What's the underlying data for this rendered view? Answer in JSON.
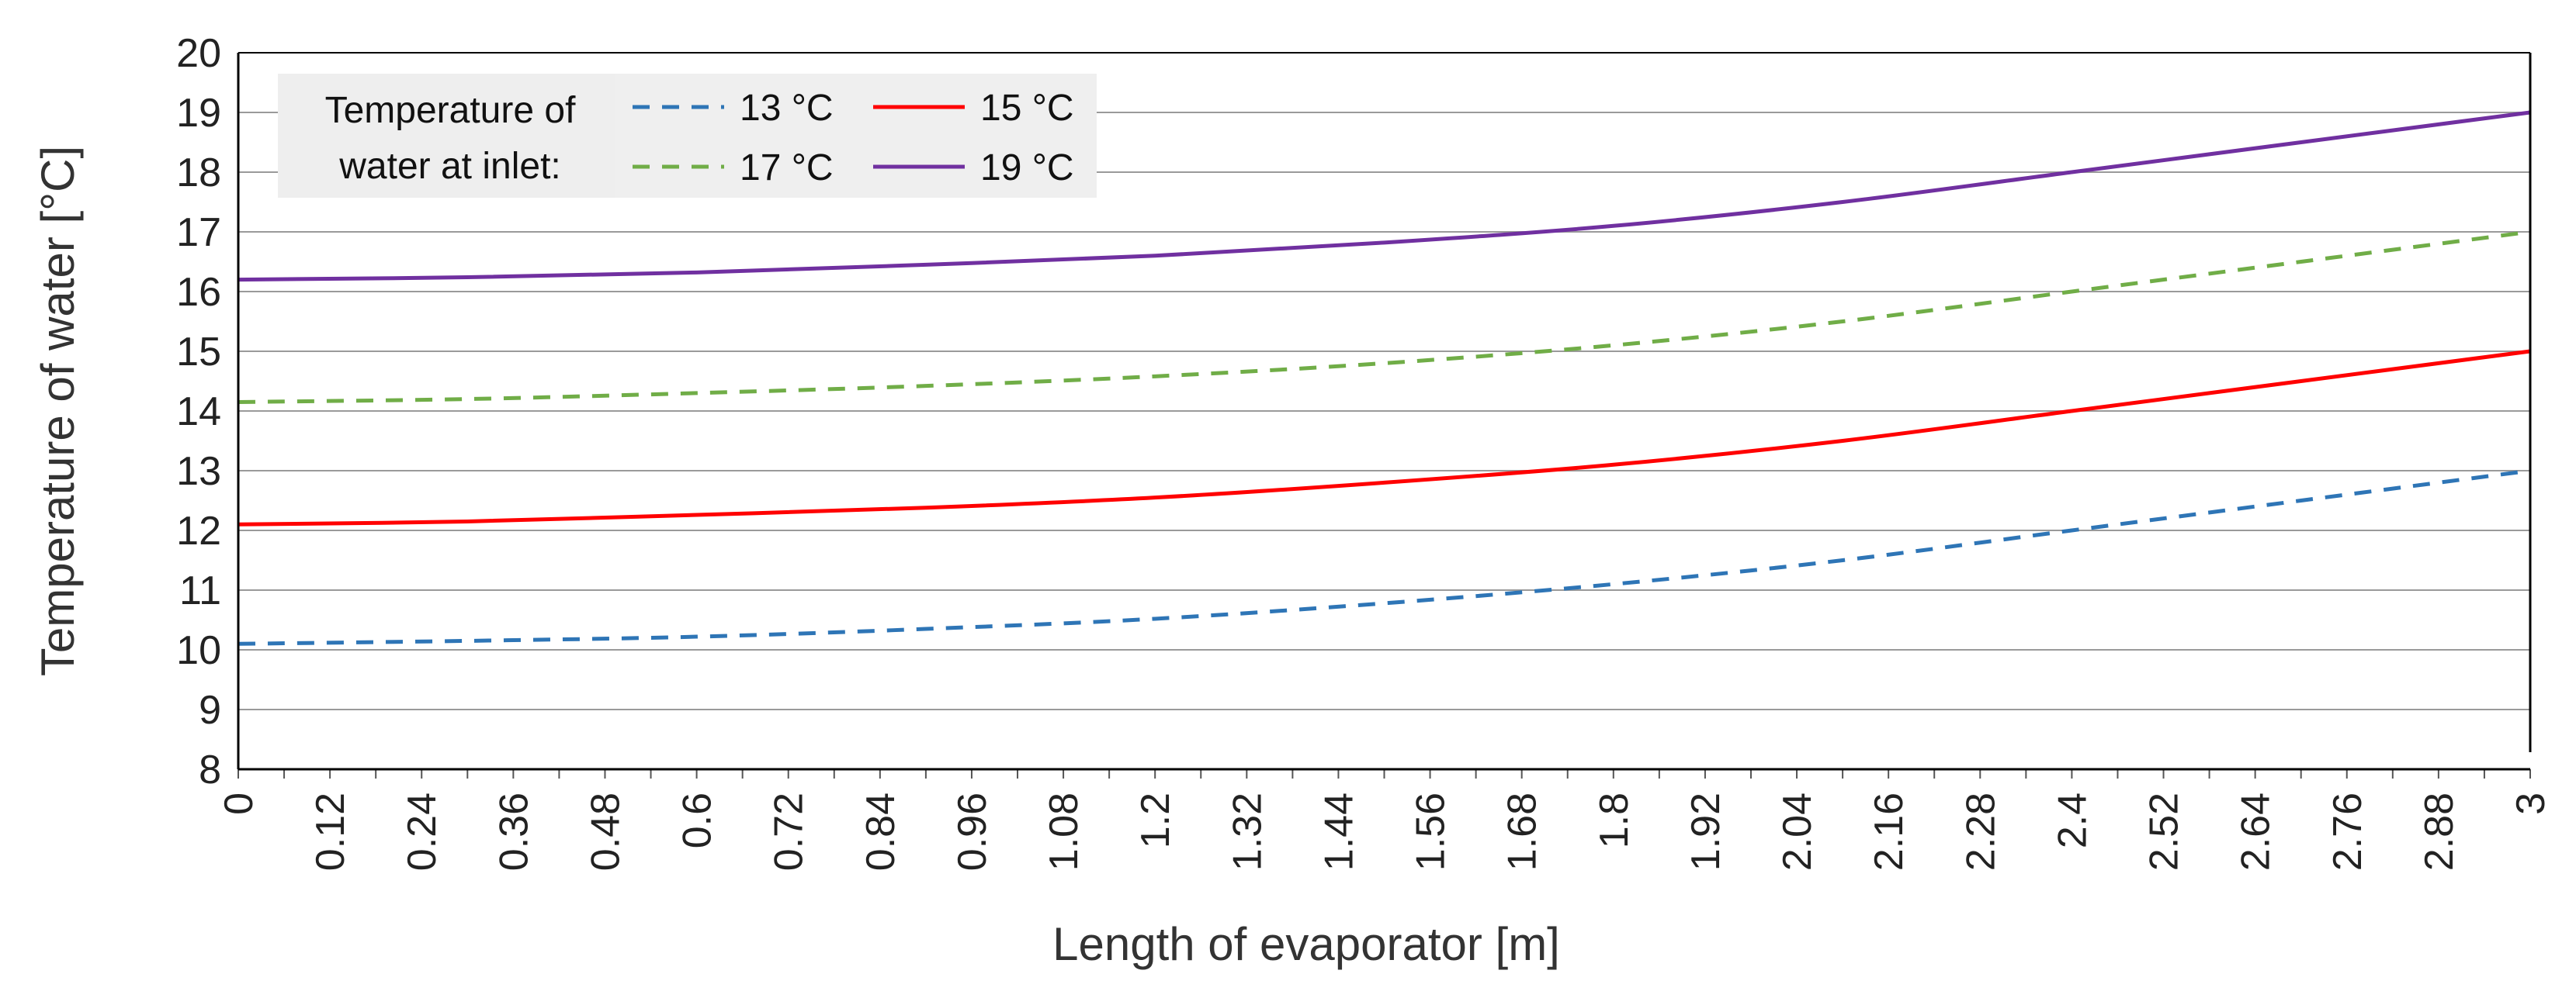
{
  "chart_data": {
    "type": "line",
    "title": "",
    "xlabel": "Length of evaporator [m]",
    "ylabel": "Temperature of water [°C]",
    "xlim": [
      0,
      3
    ],
    "ylim": [
      8,
      20
    ],
    "y_ticks": [
      "8",
      "9",
      "10",
      "11",
      "12",
      "13",
      "14",
      "15",
      "16",
      "17",
      "18",
      "19",
      "20"
    ],
    "x_tick_labels": [
      "0",
      "0.12",
      "0.24",
      "0.36",
      "0.48",
      "0.6",
      "0.72",
      "0.84",
      "0.96",
      "1.08",
      "1.2",
      "1.32",
      "1.44",
      "1.56",
      "1.68",
      "1.8",
      "1.92",
      "2.04",
      "2.16",
      "2.28",
      "2.4",
      "2.52",
      "2.64",
      "2.76",
      "2.88",
      "3"
    ],
    "grid": "horizontal",
    "legend": {
      "title_lines": [
        "Temperature of",
        "water at inlet:"
      ],
      "placement": "top-left"
    },
    "x": [
      0,
      0.3,
      0.6,
      0.9,
      1.2,
      1.5,
      1.8,
      2.1,
      2.4,
      2.7,
      3.0
    ],
    "series": [
      {
        "name": "13 °C",
        "color": "#2E75B6",
        "style": "dashed",
        "values": [
          10.1,
          10.15,
          10.22,
          10.35,
          10.52,
          10.78,
          11.1,
          11.5,
          12.0,
          12.5,
          13.0
        ]
      },
      {
        "name": "15 °C",
        "color": "#FF0000",
        "style": "solid",
        "values": [
          12.1,
          12.15,
          12.26,
          12.38,
          12.55,
          12.8,
          13.1,
          13.5,
          14.0,
          14.5,
          15.0
        ]
      },
      {
        "name": "17 °C",
        "color": "#70AD47",
        "style": "dashed",
        "values": [
          14.15,
          14.2,
          14.3,
          14.42,
          14.58,
          14.8,
          15.1,
          15.5,
          16.0,
          16.5,
          17.0
        ]
      },
      {
        "name": "19 °C",
        "color": "#7030A0",
        "style": "solid",
        "values": [
          16.2,
          16.24,
          16.32,
          16.45,
          16.6,
          16.82,
          17.1,
          17.5,
          18.0,
          18.5,
          19.0
        ]
      }
    ]
  }
}
